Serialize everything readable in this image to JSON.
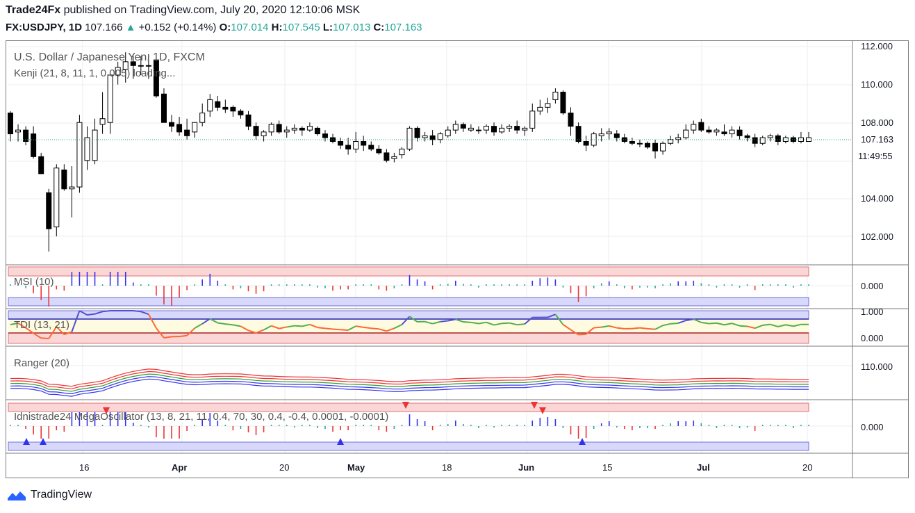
{
  "header": {
    "publisher": "Trade24Fx",
    "published_text": "published on TradingView.com, July 20, 2020 12:10:06 MSK",
    "symbol": "FX:USDJPY, 1D",
    "last": "107.166",
    "change": "+0.152 (+0.14%)",
    "open_label": "O:",
    "open": "107.014",
    "high_label": "H:",
    "high": "107.545",
    "low_label": "L:",
    "low": "107.013",
    "close_label": "C:",
    "close": "107.163"
  },
  "panels": {
    "main_title": "U.S. Dollar / Japanese Yen, 1D, FXCM",
    "main_subtitle": "Kenji (21, 8, 11, 1, 0.005) loading...",
    "msi": "MSI (10)",
    "tdi": "TDI (13, 21)",
    "ranger": "Ranger (20)",
    "mega": "Idnistrade24 MegaOscillator (13, 8, 21, 11, 0.4, 70, 30, 0.4, -0.4, 0.0001, -0.0001)"
  },
  "price_axis": {
    "ticks": [
      "112.000",
      "110.000",
      "108.000",
      "104.000",
      "102.000"
    ],
    "last_price_label": "107.163",
    "countdown_label": "11:49:55"
  },
  "indicator_axis": {
    "msi_tick": "0.000",
    "tdi_ticks": [
      "1.000",
      "0.000"
    ],
    "ranger_tick": "110.000",
    "mega_tick": "0.000"
  },
  "time_axis": [
    "16",
    "Apr",
    "20",
    "May",
    "18",
    "Jun",
    "15",
    "Jul",
    "20"
  ],
  "footer": {
    "brand": "TradingView"
  },
  "colors": {
    "up": "#ffffff",
    "down": "#000000",
    "green": "#26a69a",
    "blue": "#3333ee",
    "red": "#ee3333",
    "grid": "#e6e8ee"
  },
  "chart_data": {
    "type": "candlestick",
    "title": "U.S. Dollar / Japanese Yen, 1D, FXCM",
    "ylim": [
      100.5,
      112.5
    ],
    "ohlc": [
      [
        108.5,
        108.6,
        107.0,
        107.4
      ],
      [
        107.5,
        107.9,
        107.0,
        107.6
      ],
      [
        107.6,
        107.8,
        106.8,
        107.0
      ],
      [
        107.4,
        107.8,
        106.1,
        106.2
      ],
      [
        106.2,
        106.4,
        105.4,
        105.3
      ],
      [
        104.3,
        104.5,
        101.2,
        102.4
      ],
      [
        102.5,
        105.8,
        102.0,
        105.6
      ],
      [
        105.5,
        105.8,
        104.4,
        104.5
      ],
      [
        104.5,
        105.7,
        103.0,
        104.6
      ],
      [
        104.6,
        108.4,
        104.3,
        108.0
      ],
      [
        106.0,
        107.8,
        105.5,
        107.2
      ],
      [
        106.0,
        108.2,
        105.8,
        107.6
      ],
      [
        107.9,
        109.6,
        107.4,
        108.2
      ],
      [
        108.0,
        110.6,
        107.4,
        110.5
      ],
      [
        110.5,
        111.2,
        110.0,
        110.9
      ],
      [
        110.8,
        111.7,
        110.1,
        111.2
      ],
      [
        111.2,
        111.5,
        110.3,
        111.0
      ],
      [
        111.0,
        111.5,
        110.5,
        111.0
      ],
      [
        111.0,
        111.6,
        110.3,
        111.0
      ],
      [
        111.3,
        111.4,
        109.3,
        109.4
      ],
      [
        109.5,
        109.8,
        108.0,
        108.0
      ],
      [
        108.0,
        108.4,
        107.5,
        107.8
      ],
      [
        107.9,
        108.3,
        107.3,
        107.5
      ],
      [
        107.6,
        108.2,
        107.1,
        107.3
      ],
      [
        107.5,
        108.0,
        107.2,
        108.0
      ],
      [
        108.0,
        109.0,
        107.8,
        108.5
      ],
      [
        108.6,
        109.5,
        108.3,
        109.2
      ],
      [
        109.1,
        109.4,
        108.6,
        108.8
      ],
      [
        108.8,
        109.2,
        108.5,
        108.7
      ],
      [
        108.8,
        108.9,
        108.3,
        108.6
      ],
      [
        108.6,
        108.7,
        108.2,
        108.4
      ],
      [
        108.4,
        108.6,
        107.6,
        107.8
      ],
      [
        107.8,
        108.0,
        107.1,
        107.3
      ],
      [
        107.3,
        107.6,
        107.0,
        107.5
      ],
      [
        107.5,
        108.0,
        107.3,
        107.9
      ],
      [
        107.9,
        108.1,
        107.4,
        107.5
      ],
      [
        107.5,
        107.8,
        107.2,
        107.6
      ],
      [
        107.6,
        107.9,
        107.4,
        107.7
      ],
      [
        107.7,
        107.8,
        107.3,
        107.6
      ],
      [
        107.6,
        108.0,
        107.5,
        107.8
      ],
      [
        107.7,
        107.8,
        107.3,
        107.4
      ],
      [
        107.4,
        107.6,
        107.0,
        107.2
      ],
      [
        107.2,
        107.4,
        106.9,
        107.0
      ],
      [
        107.0,
        107.2,
        106.6,
        106.8
      ],
      [
        106.8,
        107.2,
        106.3,
        106.6
      ],
      [
        106.6,
        107.5,
        106.4,
        107.0
      ],
      [
        107.0,
        107.3,
        106.5,
        106.8
      ],
      [
        106.8,
        107.0,
        106.5,
        106.6
      ],
      [
        106.6,
        106.8,
        106.3,
        106.4
      ],
      [
        106.4,
        106.6,
        105.9,
        106.0
      ],
      [
        106.1,
        106.4,
        105.9,
        106.2
      ],
      [
        106.3,
        106.7,
        106.1,
        106.6
      ],
      [
        106.6,
        107.8,
        106.5,
        107.7
      ],
      [
        107.7,
        107.8,
        107.0,
        107.2
      ],
      [
        107.2,
        107.5,
        107.0,
        107.3
      ],
      [
        107.3,
        107.6,
        106.8,
        107.1
      ],
      [
        107.1,
        107.5,
        106.9,
        107.4
      ],
      [
        107.3,
        107.8,
        107.2,
        107.6
      ],
      [
        107.6,
        108.1,
        107.4,
        107.9
      ],
      [
        107.9,
        108.0,
        107.5,
        107.7
      ],
      [
        107.6,
        107.9,
        107.5,
        107.7
      ],
      [
        107.6,
        107.8,
        107.4,
        107.6
      ],
      [
        107.6,
        107.9,
        107.4,
        107.8
      ],
      [
        107.8,
        108.0,
        107.3,
        107.5
      ],
      [
        107.5,
        107.9,
        107.4,
        107.7
      ],
      [
        107.7,
        107.9,
        107.5,
        107.8
      ],
      [
        107.8,
        108.1,
        107.4,
        107.6
      ],
      [
        107.6,
        107.8,
        107.3,
        107.7
      ],
      [
        107.7,
        109.0,
        107.5,
        108.6
      ],
      [
        108.6,
        109.2,
        108.4,
        108.8
      ],
      [
        108.8,
        109.3,
        108.5,
        109.0
      ],
      [
        109.2,
        109.8,
        109.0,
        109.6
      ],
      [
        109.6,
        109.7,
        108.4,
        108.5
      ],
      [
        108.5,
        108.8,
        107.3,
        107.8
      ],
      [
        107.8,
        108.0,
        106.9,
        107.0
      ],
      [
        107.0,
        107.3,
        106.5,
        106.8
      ],
      [
        106.8,
        107.5,
        106.7,
        107.4
      ],
      [
        107.3,
        107.7,
        107.0,
        107.4
      ],
      [
        107.4,
        107.7,
        107.1,
        107.5
      ],
      [
        107.4,
        107.6,
        107.0,
        107.2
      ],
      [
        107.2,
        107.4,
        106.9,
        107.0
      ],
      [
        107.0,
        107.2,
        106.8,
        106.9
      ],
      [
        106.9,
        107.1,
        106.7,
        106.9
      ],
      [
        106.9,
        107.0,
        106.6,
        106.7
      ],
      [
        106.9,
        107.1,
        106.1,
        106.5
      ],
      [
        106.5,
        107.0,
        106.3,
        106.9
      ],
      [
        106.9,
        107.3,
        106.8,
        107.1
      ],
      [
        107.1,
        107.4,
        106.9,
        107.2
      ],
      [
        107.2,
        107.9,
        107.1,
        107.6
      ],
      [
        107.6,
        108.1,
        107.4,
        107.9
      ],
      [
        108.0,
        108.2,
        107.5,
        107.6
      ],
      [
        107.6,
        107.8,
        107.4,
        107.5
      ],
      [
        107.5,
        107.7,
        107.3,
        107.6
      ],
      [
        107.5,
        107.9,
        107.3,
        107.4
      ],
      [
        107.4,
        107.8,
        107.2,
        107.6
      ],
      [
        107.6,
        107.8,
        107.1,
        107.3
      ],
      [
        107.3,
        107.4,
        107.0,
        107.2
      ],
      [
        107.2,
        107.4,
        106.7,
        106.9
      ],
      [
        106.9,
        107.3,
        106.8,
        107.2
      ],
      [
        107.2,
        107.4,
        107.0,
        107.3
      ],
      [
        107.3,
        107.4,
        106.8,
        107.0
      ],
      [
        107.0,
        107.3,
        106.9,
        107.2
      ],
      [
        107.2,
        107.3,
        106.9,
        107.0
      ],
      [
        107.0,
        107.5,
        106.9,
        107.2
      ],
      [
        107.0,
        107.5,
        107.0,
        107.2
      ]
    ]
  }
}
